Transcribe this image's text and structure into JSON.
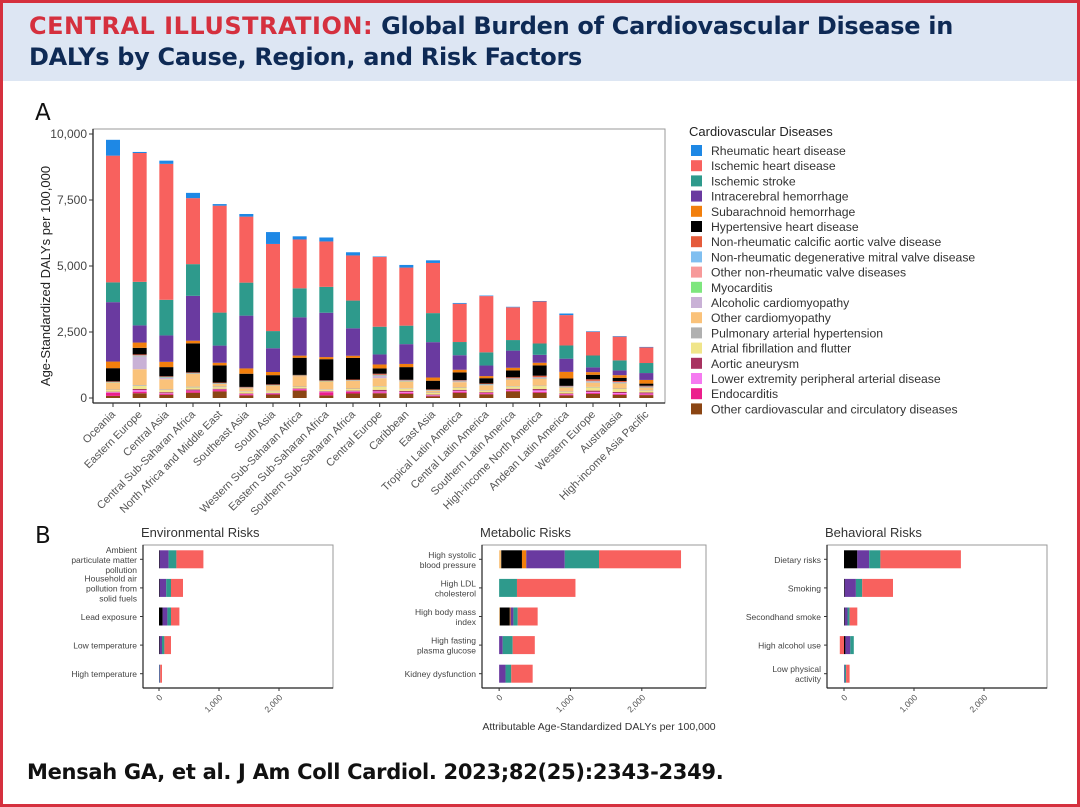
{
  "header": {
    "prefix": "CENTRAL ILLUSTRATION:",
    "title_line1": "Global Burden of Cardiovascular Disease in",
    "title_line2": "DALYs by Cause, Region, and Risk Factors"
  },
  "panels": {
    "a_label": "A",
    "b_label": "B"
  },
  "citation": "Mensah GA, et al. J Am Coll Cardiol. 2023;82(25):2343-2349.",
  "chart_data": [
    {
      "id": "A",
      "type": "bar",
      "stacked": true,
      "orientation": "vertical",
      "title": "",
      "xlabel": "",
      "ylabel": "Age-Standardized DALYs per 100,000",
      "ylim": [
        0,
        10000
      ],
      "yticks": [
        0,
        2500,
        5000,
        7500,
        10000
      ],
      "ytick_labels": [
        "0",
        "2,500",
        "5,000",
        "7,500",
        "10,000"
      ],
      "legend_title": "Cardiovascular Diseases",
      "legend_position": "right",
      "categories": [
        "Oceania",
        "Eastern Europe",
        "Central Asia",
        "Central Sub-Saharan Africa",
        "North Africa and Middle East",
        "Southeast Asia",
        "South Asia",
        "Western Sub-Saharan Africa",
        "Eastern Sub-Saharan Africa",
        "Southern Sub-Saharan Africa",
        "Central Europe",
        "Caribbean",
        "East Asia",
        "Tropical Latin America",
        "Central Latin America",
        "Southern Latin America",
        "High-income North America",
        "Andean Latin America",
        "Western Europe",
        "Australasia",
        "High-income Asia Pacific"
      ],
      "series": [
        {
          "name": "Other cardiovascular and circulatory diseases",
          "color": "#8b4513",
          "values": [
            80,
            180,
            120,
            200,
            250,
            100,
            130,
            280,
            100,
            170,
            180,
            160,
            60,
            200,
            140,
            250,
            200,
            100,
            160,
            120,
            110
          ]
        },
        {
          "name": "Endocarditis",
          "color": "#ec1e8c",
          "values": [
            120,
            60,
            40,
            60,
            50,
            40,
            30,
            50,
            120,
            60,
            30,
            40,
            20,
            40,
            30,
            30,
            30,
            30,
            30,
            30,
            30
          ]
        },
        {
          "name": "Lower extremity peripheral arterial disease",
          "color": "#f57af0",
          "values": [
            20,
            60,
            20,
            20,
            20,
            15,
            15,
            15,
            20,
            20,
            40,
            30,
            20,
            30,
            20,
            30,
            60,
            20,
            40,
            40,
            30
          ]
        },
        {
          "name": "Aortic aneurysm",
          "color": "#a83260",
          "values": [
            20,
            40,
            40,
            40,
            30,
            20,
            20,
            20,
            20,
            30,
            60,
            40,
            30,
            40,
            30,
            40,
            50,
            20,
            50,
            40,
            40
          ]
        },
        {
          "name": "Atrial fibrillation and flutter",
          "color": "#f0e58a",
          "values": [
            60,
            120,
            80,
            80,
            60,
            60,
            60,
            50,
            50,
            60,
            120,
            80,
            60,
            70,
            60,
            80,
            110,
            60,
            120,
            110,
            70
          ]
        },
        {
          "name": "Pulmonary arterial hypertension",
          "color": "#b0b0b0",
          "values": [
            20,
            30,
            30,
            30,
            30,
            20,
            20,
            20,
            20,
            20,
            20,
            20,
            20,
            20,
            20,
            20,
            20,
            20,
            20,
            20,
            20
          ]
        },
        {
          "name": "Other cardiomyopathy",
          "color": "#fac27a",
          "values": [
            260,
            600,
            380,
            480,
            100,
            120,
            200,
            400,
            300,
            300,
            300,
            250,
            60,
            200,
            180,
            250,
            250,
            150,
            160,
            190,
            100
          ]
        },
        {
          "name": "Alcoholic cardiomyopathy",
          "color": "#c9b1d6",
          "values": [
            20,
            500,
            60,
            30,
            10,
            10,
            10,
            10,
            10,
            10,
            100,
            20,
            20,
            30,
            20,
            10,
            30,
            10,
            30,
            20,
            5
          ]
        },
        {
          "name": "Myocarditis",
          "color": "#7ee67e",
          "values": [
            10,
            10,
            10,
            10,
            10,
            10,
            10,
            10,
            10,
            10,
            10,
            10,
            10,
            10,
            10,
            10,
            10,
            10,
            10,
            10,
            10
          ]
        },
        {
          "name": "Other non-rheumatic valve diseases",
          "color": "#f79a9a",
          "values": [
            10,
            10,
            10,
            10,
            10,
            10,
            10,
            10,
            10,
            10,
            10,
            10,
            10,
            10,
            10,
            10,
            10,
            10,
            10,
            10,
            10
          ]
        },
        {
          "name": "Non-rheumatic degenerative mitral valve disease",
          "color": "#80bff0",
          "values": [
            5,
            10,
            10,
            5,
            5,
            5,
            5,
            5,
            5,
            5,
            10,
            10,
            5,
            10,
            10,
            15,
            15,
            10,
            20,
            15,
            10
          ]
        },
        {
          "name": "Non-rheumatic calcific aortic valve disease",
          "color": "#e55b3b",
          "values": [
            5,
            30,
            20,
            5,
            10,
            10,
            5,
            5,
            5,
            5,
            40,
            20,
            10,
            20,
            20,
            40,
            60,
            20,
            60,
            40,
            30
          ]
        },
        {
          "name": "Hypertensive heart disease",
          "color": "#000000",
          "values": [
            500,
            250,
            350,
            1100,
            650,
            500,
            350,
            650,
            800,
            820,
            200,
            480,
            330,
            290,
            200,
            260,
            390,
            280,
            170,
            120,
            80
          ]
        },
        {
          "name": "Subarachnoid hemorrhage",
          "color": "#f27f0c",
          "values": [
            250,
            200,
            200,
            100,
            100,
            200,
            120,
            80,
            80,
            80,
            150,
            120,
            120,
            100,
            80,
            100,
            100,
            250,
            100,
            100,
            140
          ]
        },
        {
          "name": "Intracerebral hemorrhage",
          "color": "#6a3aa0",
          "values": [
            2250,
            650,
            1000,
            1700,
            650,
            2000,
            900,
            1450,
            1680,
            1040,
            380,
            750,
            1340,
            550,
            400,
            650,
            300,
            500,
            180,
            180,
            260
          ]
        },
        {
          "name": "Ischemic stroke",
          "color": "#2e9a8c",
          "values": [
            750,
            1650,
            1350,
            1200,
            1250,
            1250,
            650,
            1100,
            980,
            1050,
            1050,
            700,
            1100,
            500,
            500,
            400,
            430,
            500,
            450,
            380,
            380
          ]
        },
        {
          "name": "Ischemic heart disease",
          "color": "#f8615e",
          "values": [
            4800,
            4880,
            5150,
            2500,
            4050,
            2500,
            3300,
            1850,
            1720,
            1710,
            2640,
            2200,
            1900,
            1450,
            2130,
            1240,
            1600,
            1150,
            900,
            900,
            600
          ]
        },
        {
          "name": "Rheumatic heart disease",
          "color": "#1e88e5",
          "values": [
            600,
            40,
            120,
            200,
            60,
            100,
            450,
            120,
            150,
            120,
            20,
            100,
            100,
            30,
            20,
            20,
            10,
            60,
            20,
            20,
            10
          ]
        }
      ]
    },
    {
      "id": "B-environmental",
      "type": "bar",
      "stacked": true,
      "orientation": "horizontal",
      "title": "Environmental Risks",
      "xlim": [
        -100,
        2900
      ],
      "xticks": [
        0,
        1000,
        2000
      ],
      "xtick_labels": [
        "0",
        "1,000",
        "2,000"
      ],
      "categories": [
        "Ambient particulate matter pollution",
        "Household air pollution from solid fuels",
        "Lead exposure",
        "Low temperature",
        "High temperature"
      ],
      "series": [
        {
          "name": "Hypertensive heart disease",
          "color": "#000000",
          "values": [
            10,
            10,
            60,
            10,
            0
          ]
        },
        {
          "name": "Intracerebral hemorrhage",
          "color": "#6a3aa0",
          "values": [
            150,
            110,
            80,
            40,
            10
          ]
        },
        {
          "name": "Ischemic stroke",
          "color": "#2e9a8c",
          "values": [
            130,
            80,
            60,
            40,
            10
          ]
        },
        {
          "name": "Ischemic heart disease",
          "color": "#f8615e",
          "values": [
            450,
            200,
            140,
            110,
            30
          ]
        }
      ]
    },
    {
      "id": "B-metabolic",
      "type": "bar",
      "stacked": true,
      "orientation": "horizontal",
      "title": "Metabolic Risks",
      "xlabel": "Attributable Age-Standardized DALYs per 100,000",
      "xlim": [
        -100,
        2900
      ],
      "xticks": [
        0,
        1000,
        2000
      ],
      "xtick_labels": [
        "0",
        "1,000",
        "2,000"
      ],
      "categories": [
        "High systolic blood pressure",
        "High LDL cholesterol",
        "High body mass index",
        "High fasting plasma glucose",
        "Kidney dysfunction"
      ],
      "series": [
        {
          "name": "Other cardiomyopathy",
          "color": "#fac27a",
          "values": [
            30,
            0,
            10,
            0,
            0
          ]
        },
        {
          "name": "Hypertensive heart disease",
          "color": "#000000",
          "values": [
            290,
            0,
            140,
            0,
            0
          ]
        },
        {
          "name": "Subarachnoid hemorrhage",
          "color": "#f27f0c",
          "values": [
            60,
            0,
            10,
            0,
            0
          ]
        },
        {
          "name": "Intracerebral hemorrhage",
          "color": "#6a3aa0",
          "values": [
            540,
            0,
            40,
            50,
            90
          ]
        },
        {
          "name": "Ischemic stroke",
          "color": "#2e9a8c",
          "values": [
            480,
            250,
            60,
            140,
            80
          ]
        },
        {
          "name": "Ischemic heart disease",
          "color": "#f8615e",
          "values": [
            1150,
            820,
            280,
            310,
            300
          ]
        }
      ]
    },
    {
      "id": "B-behavioral",
      "type": "bar",
      "stacked": true,
      "orientation": "horizontal",
      "title": "Behavioral Risks",
      "xlim": [
        -100,
        2900
      ],
      "xticks": [
        0,
        1000,
        2000
      ],
      "xtick_labels": [
        "0",
        "1,000",
        "2,000"
      ],
      "categories": [
        "Dietary risks",
        "Smoking",
        "Secondhand smoke",
        "High alcohol use",
        "Low physical activity"
      ],
      "series": [
        {
          "name": "Ischemic heart disease (negative)",
          "color": "#f8615e",
          "values": [
            0,
            0,
            0,
            -60,
            0
          ]
        },
        {
          "name": "Hypertensive heart disease",
          "color": "#000000",
          "values": [
            190,
            10,
            10,
            20,
            0
          ]
        },
        {
          "name": "Intracerebral hemorrhage",
          "color": "#6a3aa0",
          "values": [
            170,
            160,
            40,
            70,
            10
          ]
        },
        {
          "name": "Ischemic stroke",
          "color": "#2e9a8c",
          "values": [
            160,
            90,
            30,
            50,
            20
          ]
        },
        {
          "name": "Ischemic heart disease",
          "color": "#f8615e",
          "values": [
            1150,
            440,
            110,
            0,
            50
          ]
        }
      ]
    }
  ]
}
